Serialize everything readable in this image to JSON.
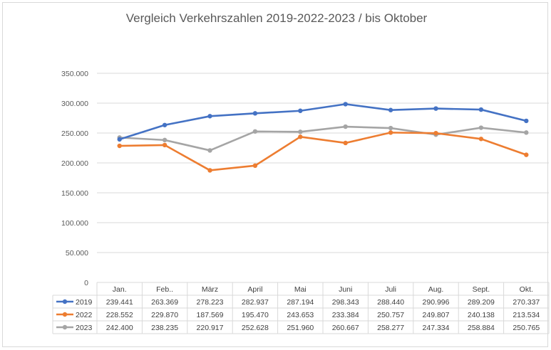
{
  "chart_data": {
    "type": "line",
    "title": "Vergleich Verkehrszahlen 2019-2022-2023 / bis Oktober",
    "categories": [
      "Jan.",
      "Feb..",
      "März",
      "April",
      "Mai",
      "Juni",
      "Juli",
      "Aug.",
      "Sept.",
      "Okt."
    ],
    "ylim": [
      0,
      350000
    ],
    "y_ticks": [
      "0",
      "50.000",
      "100.000",
      "150.000",
      "200.000",
      "250.000",
      "300.000",
      "350.000"
    ],
    "grid": true,
    "legend": "data-table",
    "series": [
      {
        "name": "2019",
        "color": "#4472c4",
        "values": [
          239441,
          263369,
          278223,
          282937,
          287194,
          298343,
          288440,
          290996,
          289209,
          270337
        ],
        "labels": [
          "239.441",
          "263.369",
          "278.223",
          "282.937",
          "287.194",
          "298.343",
          "288.440",
          "290.996",
          "289.209",
          "270.337"
        ]
      },
      {
        "name": "2022",
        "color": "#ed7d31",
        "values": [
          228552,
          229870,
          187569,
          195470,
          243653,
          233384,
          250757,
          249807,
          240138,
          213534
        ],
        "labels": [
          "228.552",
          "229.870",
          "187.569",
          "195.470",
          "243.653",
          "233.384",
          "250.757",
          "249.807",
          "240.138",
          "213.534"
        ]
      },
      {
        "name": "2023",
        "color": "#a5a5a5",
        "values": [
          242400,
          238235,
          220917,
          252628,
          251960,
          260667,
          258277,
          247334,
          258884,
          250765
        ],
        "labels": [
          "242.400",
          "238.235",
          "220.917",
          "252.628",
          "251.960",
          "260.667",
          "258.277",
          "247.334",
          "258.884",
          "250.765"
        ]
      }
    ]
  }
}
